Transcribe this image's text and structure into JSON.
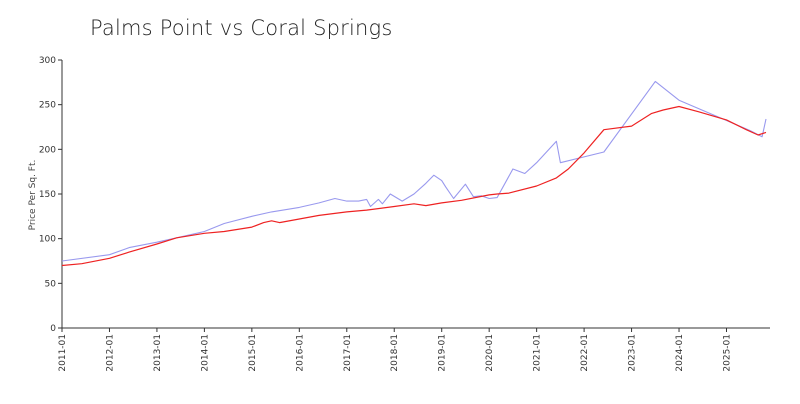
{
  "chart_data": {
    "type": "line",
    "title": "Palms Point vs Coral Springs",
    "xlabel": "",
    "ylabel": "Price Per Sq. Ft.",
    "ylim": [
      0,
      300
    ],
    "yticks": [
      0,
      50,
      100,
      150,
      200,
      250,
      300
    ],
    "xlim": [
      "2011-01",
      "2025-12"
    ],
    "xticks": [
      "2011-01",
      "2012-01",
      "2013-01",
      "2014-01",
      "2015-01",
      "2016-01",
      "2017-01",
      "2018-01",
      "2019-01",
      "2020-01",
      "2021-01",
      "2022-01",
      "2023-01",
      "2024-01",
      "2025-01"
    ],
    "grid": false,
    "legend": "none",
    "series": [
      {
        "color": "#9999ee",
        "points": [
          [
            "2011-01",
            75
          ],
          [
            "2012-01",
            82
          ],
          [
            "2012-06",
            90
          ],
          [
            "2013-01",
            96
          ],
          [
            "2013-06",
            101
          ],
          [
            "2014-01",
            108
          ],
          [
            "2014-06",
            117
          ],
          [
            "2015-01",
            125
          ],
          [
            "2015-06",
            130
          ],
          [
            "2016-01",
            135
          ],
          [
            "2016-06",
            140
          ],
          [
            "2016-10",
            145
          ],
          [
            "2017-01",
            142
          ],
          [
            "2017-04",
            142
          ],
          [
            "2017-06",
            144
          ],
          [
            "2017-07",
            136
          ],
          [
            "2017-09",
            144
          ],
          [
            "2017-10",
            139
          ],
          [
            "2017-12",
            150
          ],
          [
            "2018-03",
            142
          ],
          [
            "2018-06",
            150
          ],
          [
            "2018-09",
            162
          ],
          [
            "2018-11",
            171
          ],
          [
            "2019-01",
            165
          ],
          [
            "2019-02",
            158
          ],
          [
            "2019-04",
            145
          ],
          [
            "2019-07",
            161
          ],
          [
            "2019-09",
            147
          ],
          [
            "2019-11",
            148
          ],
          [
            "2020-01",
            145
          ],
          [
            "2020-03",
            146
          ],
          [
            "2020-07",
            178
          ],
          [
            "2020-10",
            173
          ],
          [
            "2021-01",
            185
          ],
          [
            "2021-06",
            209
          ],
          [
            "2021-07",
            185
          ],
          [
            "2022-06",
            197
          ],
          [
            "2023-07",
            276
          ],
          [
            "2024-01",
            255
          ],
          [
            "2025-07",
            221
          ],
          [
            "2025-10",
            214
          ],
          [
            "2025-11",
            234
          ]
        ]
      },
      {
        "color": "#ee2222",
        "points": [
          [
            "2011-01",
            70
          ],
          [
            "2011-06",
            72
          ],
          [
            "2012-01",
            78
          ],
          [
            "2012-06",
            85
          ],
          [
            "2013-01",
            94
          ],
          [
            "2013-06",
            101
          ],
          [
            "2014-01",
            106
          ],
          [
            "2014-06",
            108
          ],
          [
            "2015-01",
            113
          ],
          [
            "2015-04",
            118
          ],
          [
            "2015-06",
            120
          ],
          [
            "2015-08",
            118
          ],
          [
            "2016-01",
            122
          ],
          [
            "2016-06",
            126
          ],
          [
            "2017-01",
            130
          ],
          [
            "2017-06",
            132
          ],
          [
            "2018-01",
            136
          ],
          [
            "2018-06",
            139
          ],
          [
            "2018-09",
            137
          ],
          [
            "2019-01",
            140
          ],
          [
            "2019-06",
            143
          ],
          [
            "2020-01",
            149
          ],
          [
            "2020-03",
            150
          ],
          [
            "2020-06",
            151
          ],
          [
            "2021-01",
            159
          ],
          [
            "2021-06",
            168
          ],
          [
            "2021-09",
            178
          ],
          [
            "2022-01",
            196
          ],
          [
            "2022-06",
            222
          ],
          [
            "2023-01",
            226
          ],
          [
            "2023-06",
            240
          ],
          [
            "2023-09",
            244
          ],
          [
            "2024-01",
            248
          ],
          [
            "2024-06",
            242
          ],
          [
            "2025-01",
            233
          ],
          [
            "2025-06",
            222
          ],
          [
            "2025-09",
            216
          ],
          [
            "2025-11",
            219
          ]
        ]
      }
    ]
  }
}
